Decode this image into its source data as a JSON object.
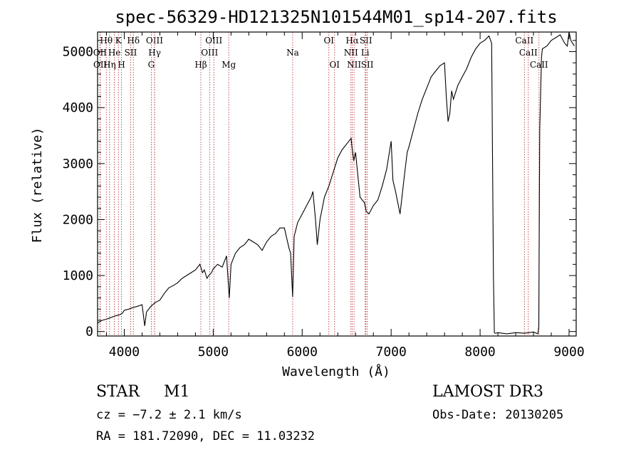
{
  "chart_data": {
    "type": "line",
    "title": "spec-56329-HD121325N101544M01_sp14-207.fits",
    "xlabel": "Wavelength (Å)",
    "ylabel": "Flux (relative)",
    "xlim": [
      3700,
      9080
    ],
    "ylim": [
      -80,
      5350
    ],
    "xticks": [
      4000,
      5000,
      6000,
      7000,
      8000,
      9000
    ],
    "yticks": [
      0,
      1000,
      2000,
      3000,
      4000,
      5000
    ],
    "series": [
      {
        "name": "flux",
        "x": [
          3700,
          3750,
          3800,
          3850,
          3900,
          3950,
          3980,
          4000,
          4050,
          4100,
          4150,
          4200,
          4230,
          4250,
          4300,
          4350,
          4400,
          4450,
          4500,
          4550,
          4600,
          4650,
          4700,
          4750,
          4800,
          4850,
          4880,
          4900,
          4930,
          4950,
          4980,
          5000,
          5050,
          5100,
          5150,
          5180,
          5200,
          5250,
          5300,
          5350,
          5400,
          5450,
          5500,
          5550,
          5600,
          5650,
          5700,
          5750,
          5800,
          5850,
          5870,
          5893,
          5910,
          5950,
          6000,
          6050,
          6100,
          6120,
          6150,
          6170,
          6200,
          6250,
          6300,
          6350,
          6400,
          6450,
          6500,
          6550,
          6560,
          6580,
          6600,
          6650,
          6700,
          6720,
          6750,
          6800,
          6850,
          6900,
          6950,
          7000,
          7020,
          7050,
          7100,
          7150,
          7180,
          7200,
          7250,
          7300,
          7350,
          7400,
          7450,
          7500,
          7550,
          7600,
          7620,
          7640,
          7660,
          7680,
          7700,
          7750,
          7800,
          7850,
          7900,
          7950,
          8000,
          8050,
          8100,
          8130,
          8150,
          8160,
          8170,
          8175,
          8200,
          8300,
          8400,
          8500,
          8600,
          8650,
          8660,
          8670,
          8690,
          8700,
          8750,
          8800,
          8850,
          8900,
          8950,
          8980,
          9000,
          9020,
          9060
        ],
        "y": [
          150,
          200,
          220,
          250,
          280,
          300,
          330,
          380,
          400,
          430,
          450,
          480,
          100,
          350,
          450,
          520,
          560,
          680,
          780,
          820,
          870,
          950,
          1000,
          1050,
          1100,
          1200,
          1050,
          1100,
          950,
          1000,
          1050,
          1120,
          1200,
          1150,
          1350,
          600,
          1200,
          1400,
          1500,
          1550,
          1650,
          1600,
          1550,
          1450,
          1600,
          1700,
          1750,
          1850,
          1850,
          1500,
          1400,
          620,
          1700,
          1950,
          2100,
          2250,
          2400,
          2500,
          2000,
          1550,
          2000,
          2400,
          2600,
          2850,
          3100,
          3250,
          3350,
          3450,
          3300,
          3050,
          3200,
          2400,
          2300,
          2150,
          2100,
          2250,
          2350,
          2600,
          2900,
          3400,
          2700,
          2500,
          2100,
          2800,
          3200,
          3300,
          3600,
          3900,
          4150,
          4350,
          4550,
          4650,
          4750,
          4800,
          4200,
          3750,
          3900,
          4300,
          4150,
          4400,
          4550,
          4700,
          4900,
          5050,
          5150,
          5200,
          5280,
          5150,
          1000,
          -20,
          -30,
          -30,
          -20,
          -40,
          -20,
          -30,
          -10,
          -40,
          100,
          3600,
          4900,
          5050,
          5100,
          5200,
          5250,
          5300,
          5150,
          5100,
          5350,
          5200,
          5100
        ]
      }
    ],
    "lines": [
      {
        "label": "Hθ",
        "x": 3798,
        "row": 0
      },
      {
        "label": "OII",
        "x": 3727,
        "row": 1
      },
      {
        "label": "OII",
        "x": 3729,
        "row": 2
      },
      {
        "label": "Hη",
        "x": 3835,
        "row": 2
      },
      {
        "label": "He",
        "x": 3889,
        "row": 1
      },
      {
        "label": "K",
        "x": 3934,
        "row": 0
      },
      {
        "label": "H",
        "x": 3969,
        "row": 2
      },
      {
        "label": "SII",
        "x": 4072,
        "row": 1
      },
      {
        "label": "Hδ",
        "x": 4102,
        "row": 0
      },
      {
        "label": "OIII",
        "x": 4340,
        "row": 0
      },
      {
        "label": "Hγ",
        "x": 4341,
        "row": 1
      },
      {
        "label": "G",
        "x": 4304,
        "row": 2
      },
      {
        "label": "Hβ",
        "x": 4861,
        "row": 2
      },
      {
        "label": "OIII",
        "x": 4959,
        "row": 1
      },
      {
        "label": "OIII",
        "x": 5007,
        "row": 0
      },
      {
        "label": "Mg",
        "x": 5175,
        "row": 2
      },
      {
        "label": "Na",
        "x": 5893,
        "row": 1
      },
      {
        "label": "OI",
        "x": 6300,
        "row": 0
      },
      {
        "label": "OI",
        "x": 6364,
        "row": 2
      },
      {
        "label": "Hα",
        "x": 6563,
        "row": 0
      },
      {
        "label": "NII",
        "x": 6548,
        "row": 1
      },
      {
        "label": "NII",
        "x": 6583,
        "row": 2
      },
      {
        "label": "SII",
        "x": 6716,
        "row": 0
      },
      {
        "label": "Li",
        "x": 6708,
        "row": 1
      },
      {
        "label": "SII",
        "x": 6731,
        "row": 2
      },
      {
        "label": "CaII",
        "x": 8498,
        "row": 0
      },
      {
        "label": "CaII",
        "x": 8542,
        "row": 1
      },
      {
        "label": "CaII",
        "x": 8662,
        "row": 2
      }
    ]
  },
  "info": {
    "class_label": "STAR",
    "subclass": "M1",
    "survey": "LAMOST DR3",
    "cz": "cz = −7.2 ± 2.1 km/s",
    "obs_date": "Obs-Date: 20130205",
    "coords": "RA = 181.72090, DEC =  11.03232"
  }
}
